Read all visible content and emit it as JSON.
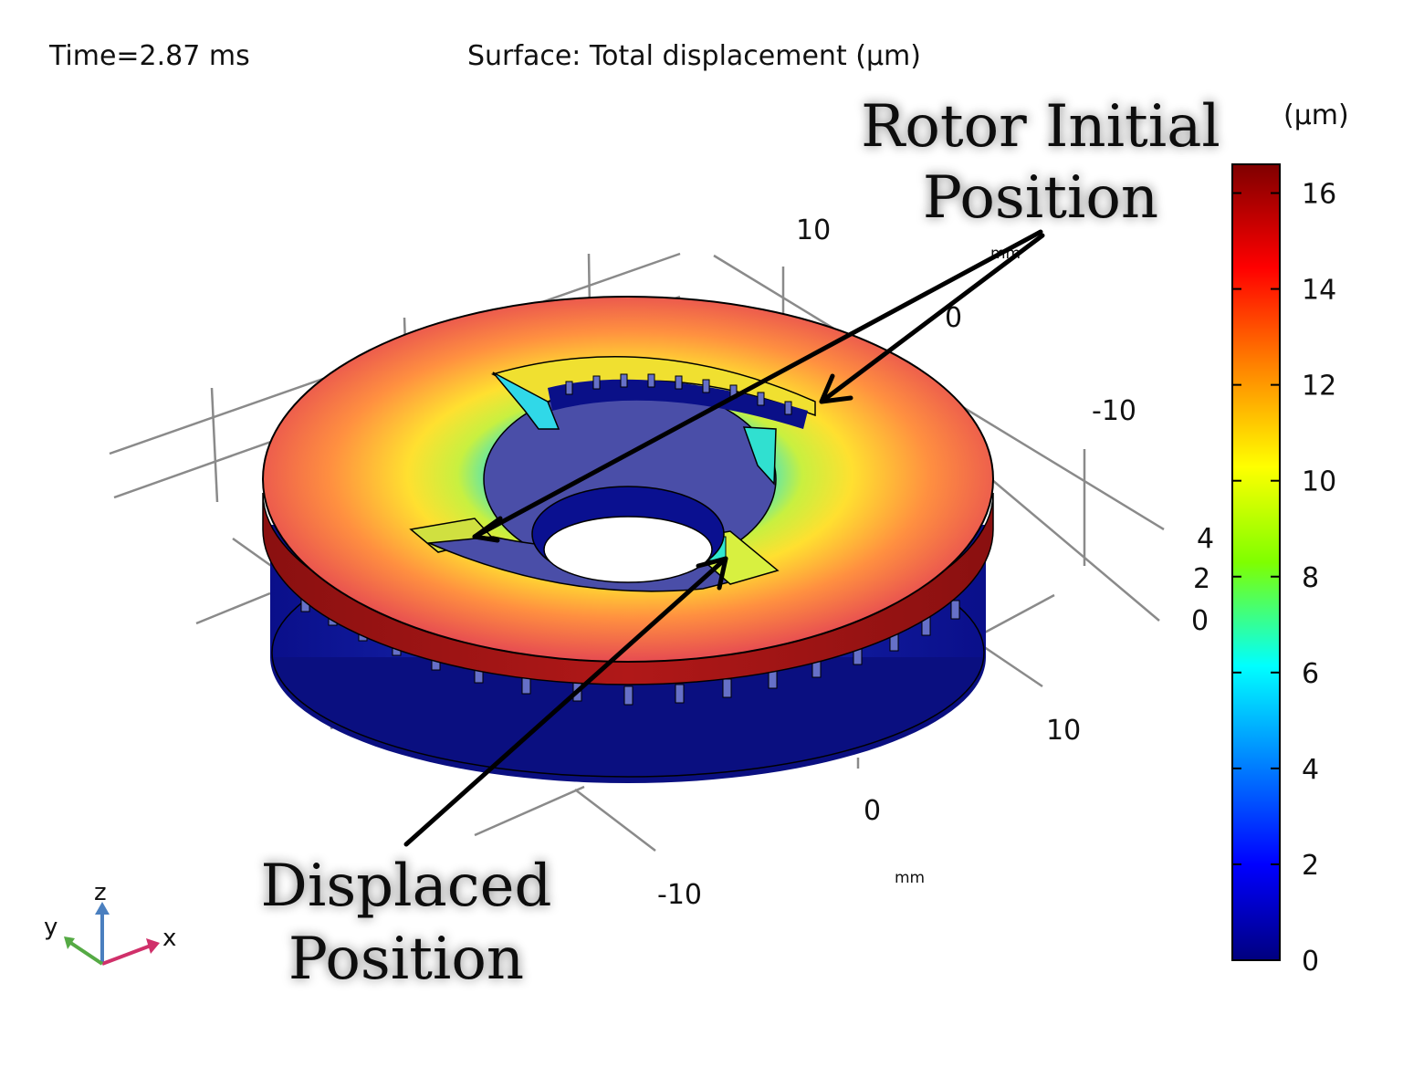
{
  "header": {
    "time_label": "Time=2.87 ms",
    "surface_label": "Surface: Total displacement (μm)"
  },
  "annotations": {
    "rotor_initial_line1": "Rotor Initial",
    "rotor_initial_line2": "Position",
    "displaced_line1": "Displaced",
    "displaced_line2": "Position"
  },
  "axes": {
    "y_ticks": [
      "10",
      "0",
      "-10"
    ],
    "x_ticks": [
      "10",
      "0",
      "-10"
    ],
    "z_ticks": [
      "4",
      "2",
      "0"
    ],
    "x_unit": "mm",
    "y_unit": "mm"
  },
  "colorbar": {
    "unit": "(μm)",
    "ticks": [
      "16",
      "14",
      "12",
      "10",
      "8",
      "6",
      "4",
      "2",
      "0"
    ],
    "min": 0,
    "max": 16.6,
    "colors": [
      "#00007f",
      "#0000ff",
      "#00ffff",
      "#7fff00",
      "#ffff00",
      "#ff7f00",
      "#ff0000",
      "#7f0000"
    ]
  },
  "triad": {
    "z": "z",
    "y": "y",
    "x": "x",
    "z_color": "#4a7fbf",
    "y_color": "#55aa44",
    "x_color": "#d0306a"
  }
}
